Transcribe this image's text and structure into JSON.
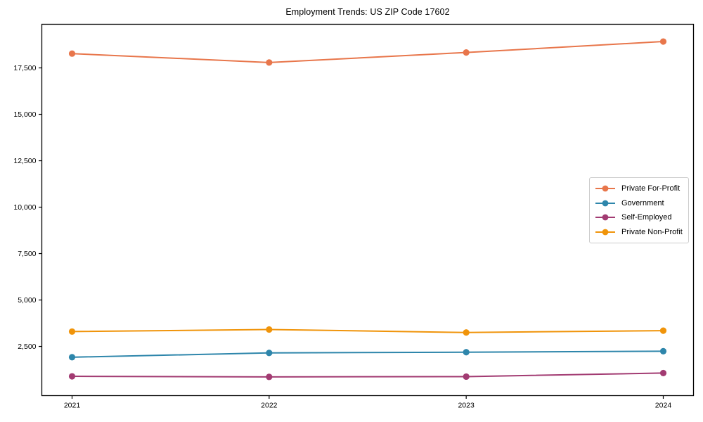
{
  "chart_data": {
    "type": "line",
    "title": "Employment Trends: US ZIP Code 17602",
    "xlabel": "",
    "ylabel": "",
    "x_labels": [
      "2021",
      "2022",
      "2023",
      "2024"
    ],
    "y_ticks": [
      2500,
      5000,
      7500,
      10000,
      12500,
      15000,
      17500
    ],
    "ylim": [
      -150,
      19850
    ],
    "x_margin_frac": 0.0464,
    "grid": false,
    "legend_position": "center right",
    "marker": "circle",
    "series": [
      {
        "name": "Private For-Profit",
        "color": "#E8764B",
        "values": [
          18270,
          17790,
          18330,
          18920
        ]
      },
      {
        "name": "Government",
        "color": "#2E86AB",
        "values": [
          1920,
          2150,
          2190,
          2240
        ]
      },
      {
        "name": "Self-Employed",
        "color": "#A23B72",
        "values": [
          890,
          860,
          875,
          1065
        ]
      },
      {
        "name": "Private Non-Profit",
        "color": "#F0940A",
        "values": [
          3300,
          3410,
          3250,
          3350
        ]
      }
    ]
  }
}
